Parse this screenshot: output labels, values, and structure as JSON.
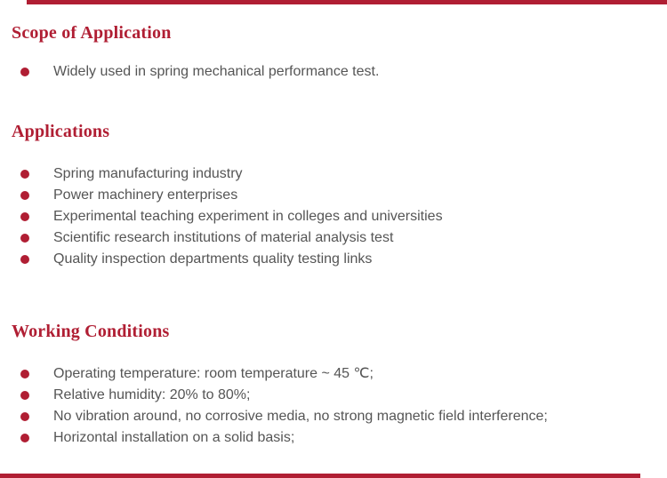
{
  "theme": {
    "accent_color": "#b01e33",
    "text_color": "#555555"
  },
  "sections": [
    {
      "heading": "Scope of Application",
      "items": [
        "Widely used in spring mechanical performance test."
      ]
    },
    {
      "heading": "Applications",
      "items": [
        "Spring manufacturing industry",
        "Power machinery enterprises",
        "Experimental teaching experiment in colleges and universities",
        "Scientific research institutions of material analysis test",
        "Quality inspection departments quality testing links"
      ]
    },
    {
      "heading": "Working Conditions",
      "items": [
        "Operating temperature: room temperature ~ 45 ℃;",
        "Relative humidity: 20% to 80%;",
        "No vibration around, no corrosive media, no strong magnetic field interference;",
        "Horizontal installation on a solid basis;"
      ]
    }
  ]
}
